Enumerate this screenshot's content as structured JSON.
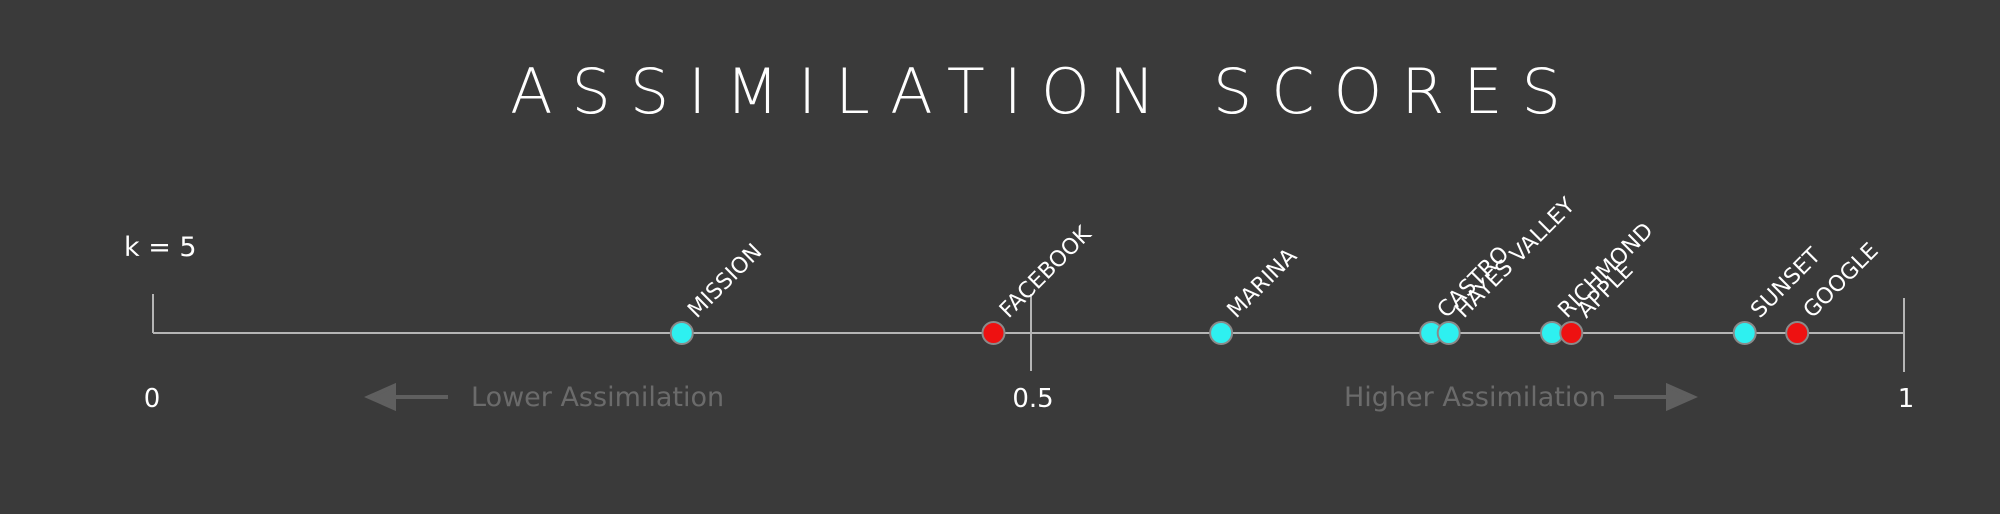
{
  "chart_data": {
    "type": "scatter",
    "title": "ASSIMILATION SCORES",
    "annotation": "k = 5",
    "xlim": [
      0,
      1
    ],
    "ticks": [
      {
        "value": 0,
        "label": "0"
      },
      {
        "value": 0.5,
        "label": "0.5"
      },
      {
        "value": 1,
        "label": "1"
      }
    ],
    "direction_labels": {
      "lower": "Lower Assimilation",
      "higher": "Higher Assimilation"
    },
    "colors": {
      "neighborhood": "#2ef0f0",
      "company": "#ee1111"
    },
    "points": [
      {
        "label": "MISSION",
        "value": 0.302,
        "group": "neighborhood"
      },
      {
        "label": "FACEBOOK",
        "value": 0.48,
        "group": "company"
      },
      {
        "label": "MARINA",
        "value": 0.61,
        "group": "neighborhood"
      },
      {
        "label": "CASTRO",
        "value": 0.73,
        "group": "neighborhood"
      },
      {
        "label": "HAYES VALLEY",
        "value": 0.74,
        "group": "neighborhood"
      },
      {
        "label": "RICHMOND",
        "value": 0.799,
        "group": "neighborhood"
      },
      {
        "label": "APPLE",
        "value": 0.81,
        "group": "company"
      },
      {
        "label": "SUNSET",
        "value": 0.909,
        "group": "neighborhood"
      },
      {
        "label": "GOOGLE",
        "value": 0.939,
        "group": "company"
      }
    ]
  }
}
